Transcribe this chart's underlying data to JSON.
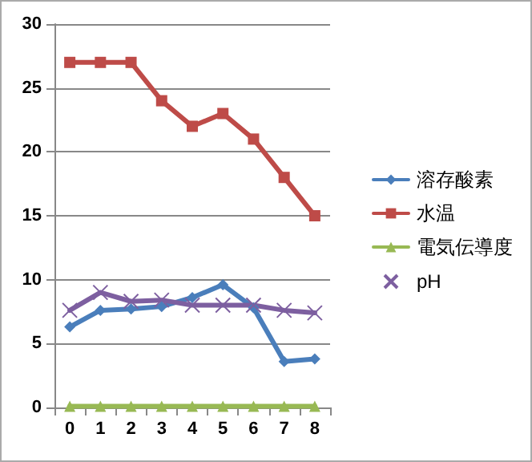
{
  "chart_data": {
    "type": "line",
    "categories": [
      "0",
      "1",
      "2",
      "3",
      "4",
      "5",
      "6",
      "7",
      "8"
    ],
    "series": [
      {
        "name": "溶存酸素",
        "color": "#4a7ebb",
        "marker": "diamond",
        "values": [
          6.3,
          7.6,
          7.7,
          7.9,
          8.6,
          9.6,
          7.8,
          3.6,
          3.8
        ]
      },
      {
        "name": "水温",
        "color": "#be4b48",
        "marker": "square",
        "values": [
          27,
          27,
          27,
          24,
          22,
          23,
          21,
          18,
          15
        ]
      },
      {
        "name": "電気伝導度",
        "color": "#98b954",
        "marker": "triangle",
        "values": [
          0.1,
          0.1,
          0.1,
          0.1,
          0.1,
          0.1,
          0.1,
          0.1,
          0.1
        ]
      },
      {
        "name": "pH",
        "color": "#7d5fa0",
        "marker": "cross",
        "values": [
          7.6,
          9.0,
          8.3,
          8.4,
          8.0,
          8.0,
          8.0,
          7.6,
          7.4
        ]
      }
    ],
    "ylim": [
      0,
      30
    ],
    "yticks": [
      0,
      5,
      10,
      15,
      20,
      25,
      30
    ],
    "grid": "y",
    "legend": "right"
  }
}
